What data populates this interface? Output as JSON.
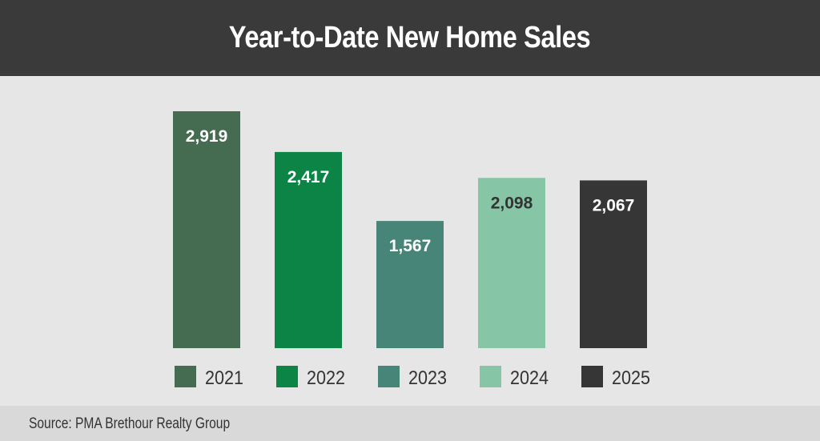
{
  "header": {
    "title": "Year-to-Date New Home Sales"
  },
  "footer": {
    "source": "Source: PMA Brethour Realty Group"
  },
  "chart_data": {
    "type": "bar",
    "title": "Year-to-Date New Home Sales",
    "categories": [
      "2021",
      "2022",
      "2023",
      "2024",
      "2025"
    ],
    "values": [
      2919,
      2417,
      1567,
      2098,
      2067
    ],
    "value_labels": [
      "2,919",
      "2,417",
      "1,567",
      "2,098",
      "2,067"
    ],
    "colors": [
      "#456b50",
      "#0b8446",
      "#468577",
      "#86c6a6",
      "#363636"
    ],
    "label_colors": [
      "#ffffff",
      "#ffffff",
      "#ffffff",
      "#333333",
      "#ffffff"
    ],
    "legend": {
      "placement": "bottom",
      "entries": [
        "2021",
        "2022",
        "2023",
        "2024",
        "2025"
      ]
    },
    "ylim": [
      0,
      2919
    ],
    "grid": false,
    "xlabel": "",
    "ylabel": ""
  }
}
